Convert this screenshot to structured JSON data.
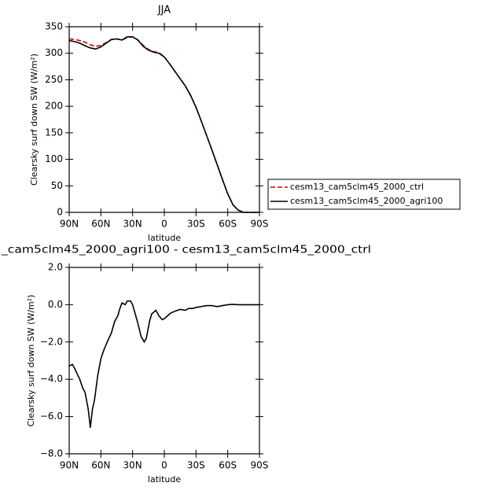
{
  "chart_data": [
    {
      "type": "line",
      "title": "JJA",
      "x_label": "latitude",
      "y_label": "Clearsky surf down SW (W/m²)",
      "x": [
        90,
        85,
        80,
        75,
        70,
        65,
        60,
        55,
        50,
        45,
        40,
        35,
        30,
        25,
        20,
        15,
        10,
        5,
        0,
        -5,
        -10,
        -15,
        -20,
        -25,
        -30,
        -35,
        -40,
        -45,
        -50,
        -55,
        -60,
        -65,
        -70,
        -75,
        -80,
        -85,
        -90
      ],
      "series": [
        {
          "name": "cesm13_cam5clm45_2000_ctrl",
          "color": "#cc0000",
          "line_style": "dashed",
          "values": [
            327,
            326,
            324,
            321,
            316,
            313,
            315,
            320,
            326,
            327,
            325,
            330,
            331,
            325,
            315,
            307,
            303,
            301,
            293,
            280,
            266,
            252,
            238,
            220,
            198,
            172,
            145,
            118,
            90,
            62,
            35,
            14,
            4,
            0,
            0,
            0,
            0
          ]
        },
        {
          "name": "cesm13_cam5clm45_2000_agri100",
          "color": "#000000",
          "line_style": "solid",
          "values": [
            324,
            322,
            319,
            314,
            310,
            308,
            312,
            319,
            326,
            327,
            325,
            331,
            331,
            325,
            313,
            306,
            302,
            300,
            293,
            280,
            266,
            252,
            238,
            220,
            198,
            172,
            145,
            118,
            90,
            62,
            35,
            14,
            4,
            0,
            0,
            0,
            0
          ]
        }
      ],
      "xlim": [
        90,
        -90
      ],
      "xticks": [
        {
          "value": 90,
          "label": "90N"
        },
        {
          "value": 60,
          "label": "60N"
        },
        {
          "value": 30,
          "label": "30N"
        },
        0,
        {
          "value": -30,
          "label": "30S"
        },
        {
          "value": -60,
          "label": "60S"
        },
        {
          "value": -90,
          "label": "90S"
        }
      ],
      "ylim": [
        0,
        350
      ],
      "yticks": [
        0,
        50,
        100,
        150,
        200,
        250,
        300,
        350
      ],
      "legend": "right"
    },
    {
      "type": "line",
      "title": "_cam5clm45_2000_agri100 - cesm13_cam5clm45_2000_ctrl",
      "x_label": "latitude",
      "y_label": "Clearsky surf down SW (W/m²)",
      "x": [
        90,
        87,
        85,
        80,
        77,
        75,
        72,
        70,
        68,
        66,
        63,
        60,
        57,
        54,
        50,
        47,
        44,
        42,
        40,
        37,
        35,
        32,
        30,
        28,
        25,
        22,
        19,
        17,
        14,
        12,
        10,
        8,
        5,
        2,
        0,
        -3,
        -6,
        -10,
        -15,
        -20,
        -23,
        -27,
        -30,
        -35,
        -40,
        -45,
        -50,
        -55,
        -60,
        -65,
        -70,
        -75,
        -80,
        -85,
        -90
      ],
      "series": [
        {
          "color": "#000000",
          "line_style": "solid",
          "values": [
            -3.3,
            -3.2,
            -3.4,
            -4.0,
            -4.5,
            -4.7,
            -5.6,
            -6.6,
            -5.6,
            -5.1,
            -3.8,
            -2.9,
            -2.4,
            -2.0,
            -1.5,
            -0.9,
            -0.6,
            -0.2,
            0.1,
            0.0,
            0.2,
            0.2,
            0.0,
            -0.4,
            -1.0,
            -1.7,
            -2.0,
            -1.8,
            -0.9,
            -0.5,
            -0.4,
            -0.3,
            -0.6,
            -0.8,
            -0.75,
            -0.6,
            -0.45,
            -0.35,
            -0.25,
            -0.3,
            -0.2,
            -0.2,
            -0.15,
            -0.1,
            -0.05,
            -0.05,
            -0.1,
            -0.05,
            0.0,
            0.02,
            0.0,
            0.0,
            0.0,
            0.0,
            0.0
          ]
        }
      ],
      "xlim": [
        90,
        -90
      ],
      "xticks": [
        {
          "value": 90,
          "label": "90N"
        },
        {
          "value": 60,
          "label": "60N"
        },
        {
          "value": 30,
          "label": "30N"
        },
        0,
        {
          "value": -30,
          "label": "30S"
        },
        {
          "value": -60,
          "label": "60S"
        },
        {
          "value": -90,
          "label": "90S"
        }
      ],
      "ylim": [
        -8,
        2
      ],
      "yticks": [
        {
          "value": -8,
          "label": "−8.0"
        },
        {
          "value": -6,
          "label": "−6.0"
        },
        {
          "value": -4,
          "label": "−4.0"
        },
        {
          "value": -2,
          "label": "−2.0"
        },
        {
          "value": 0,
          "label": "0.0"
        },
        {
          "value": 2,
          "label": "2.0"
        }
      ]
    }
  ]
}
